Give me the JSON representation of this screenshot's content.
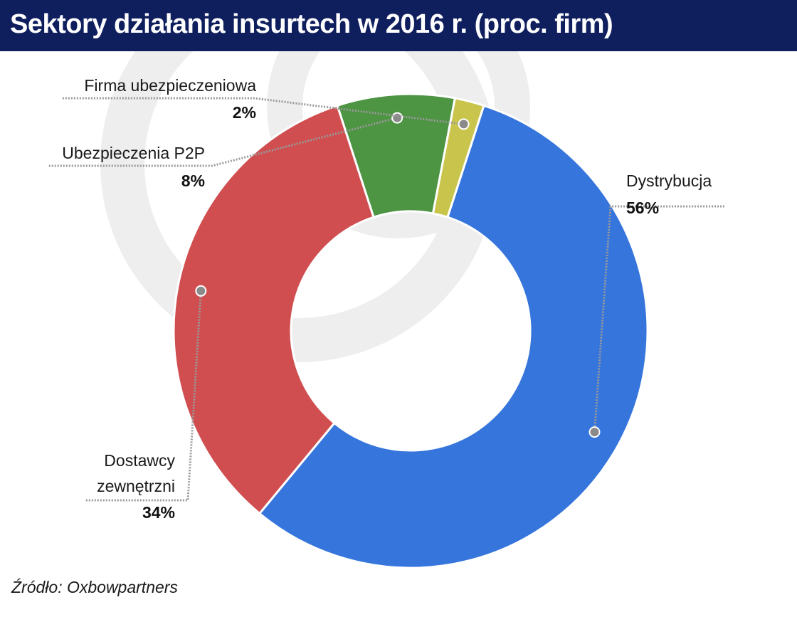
{
  "title": "Sektory działania insurtech w 2016 r. (proc. firm)",
  "source": "Źródło: Oxbowpartners",
  "chart_data": {
    "type": "pie",
    "variant": "donut",
    "title": "Sektory działania insurtech w 2016 r. (proc. firm)",
    "unit": "%",
    "slices": [
      {
        "label": "Dystrybucja",
        "value": 56,
        "value_label": "56%",
        "color": "#3575dc"
      },
      {
        "label": "Dostawcy zewnętrzni",
        "value": 34,
        "value_label": "34%",
        "color": "#d04e4f"
      },
      {
        "label": "Ubezpieczenia P2P",
        "value": 8,
        "value_label": "8%",
        "color": "#4d9443"
      },
      {
        "label": "Firma ubezpieczeniowa",
        "value": 2,
        "value_label": "2%",
        "color": "#c8c44c"
      }
    ],
    "legend": "none"
  },
  "colors": {
    "title_bar": "#0f1f5e",
    "watermark": "#eeeeee",
    "leader": "#9a9a9a",
    "dot": "#8a8a8a"
  }
}
